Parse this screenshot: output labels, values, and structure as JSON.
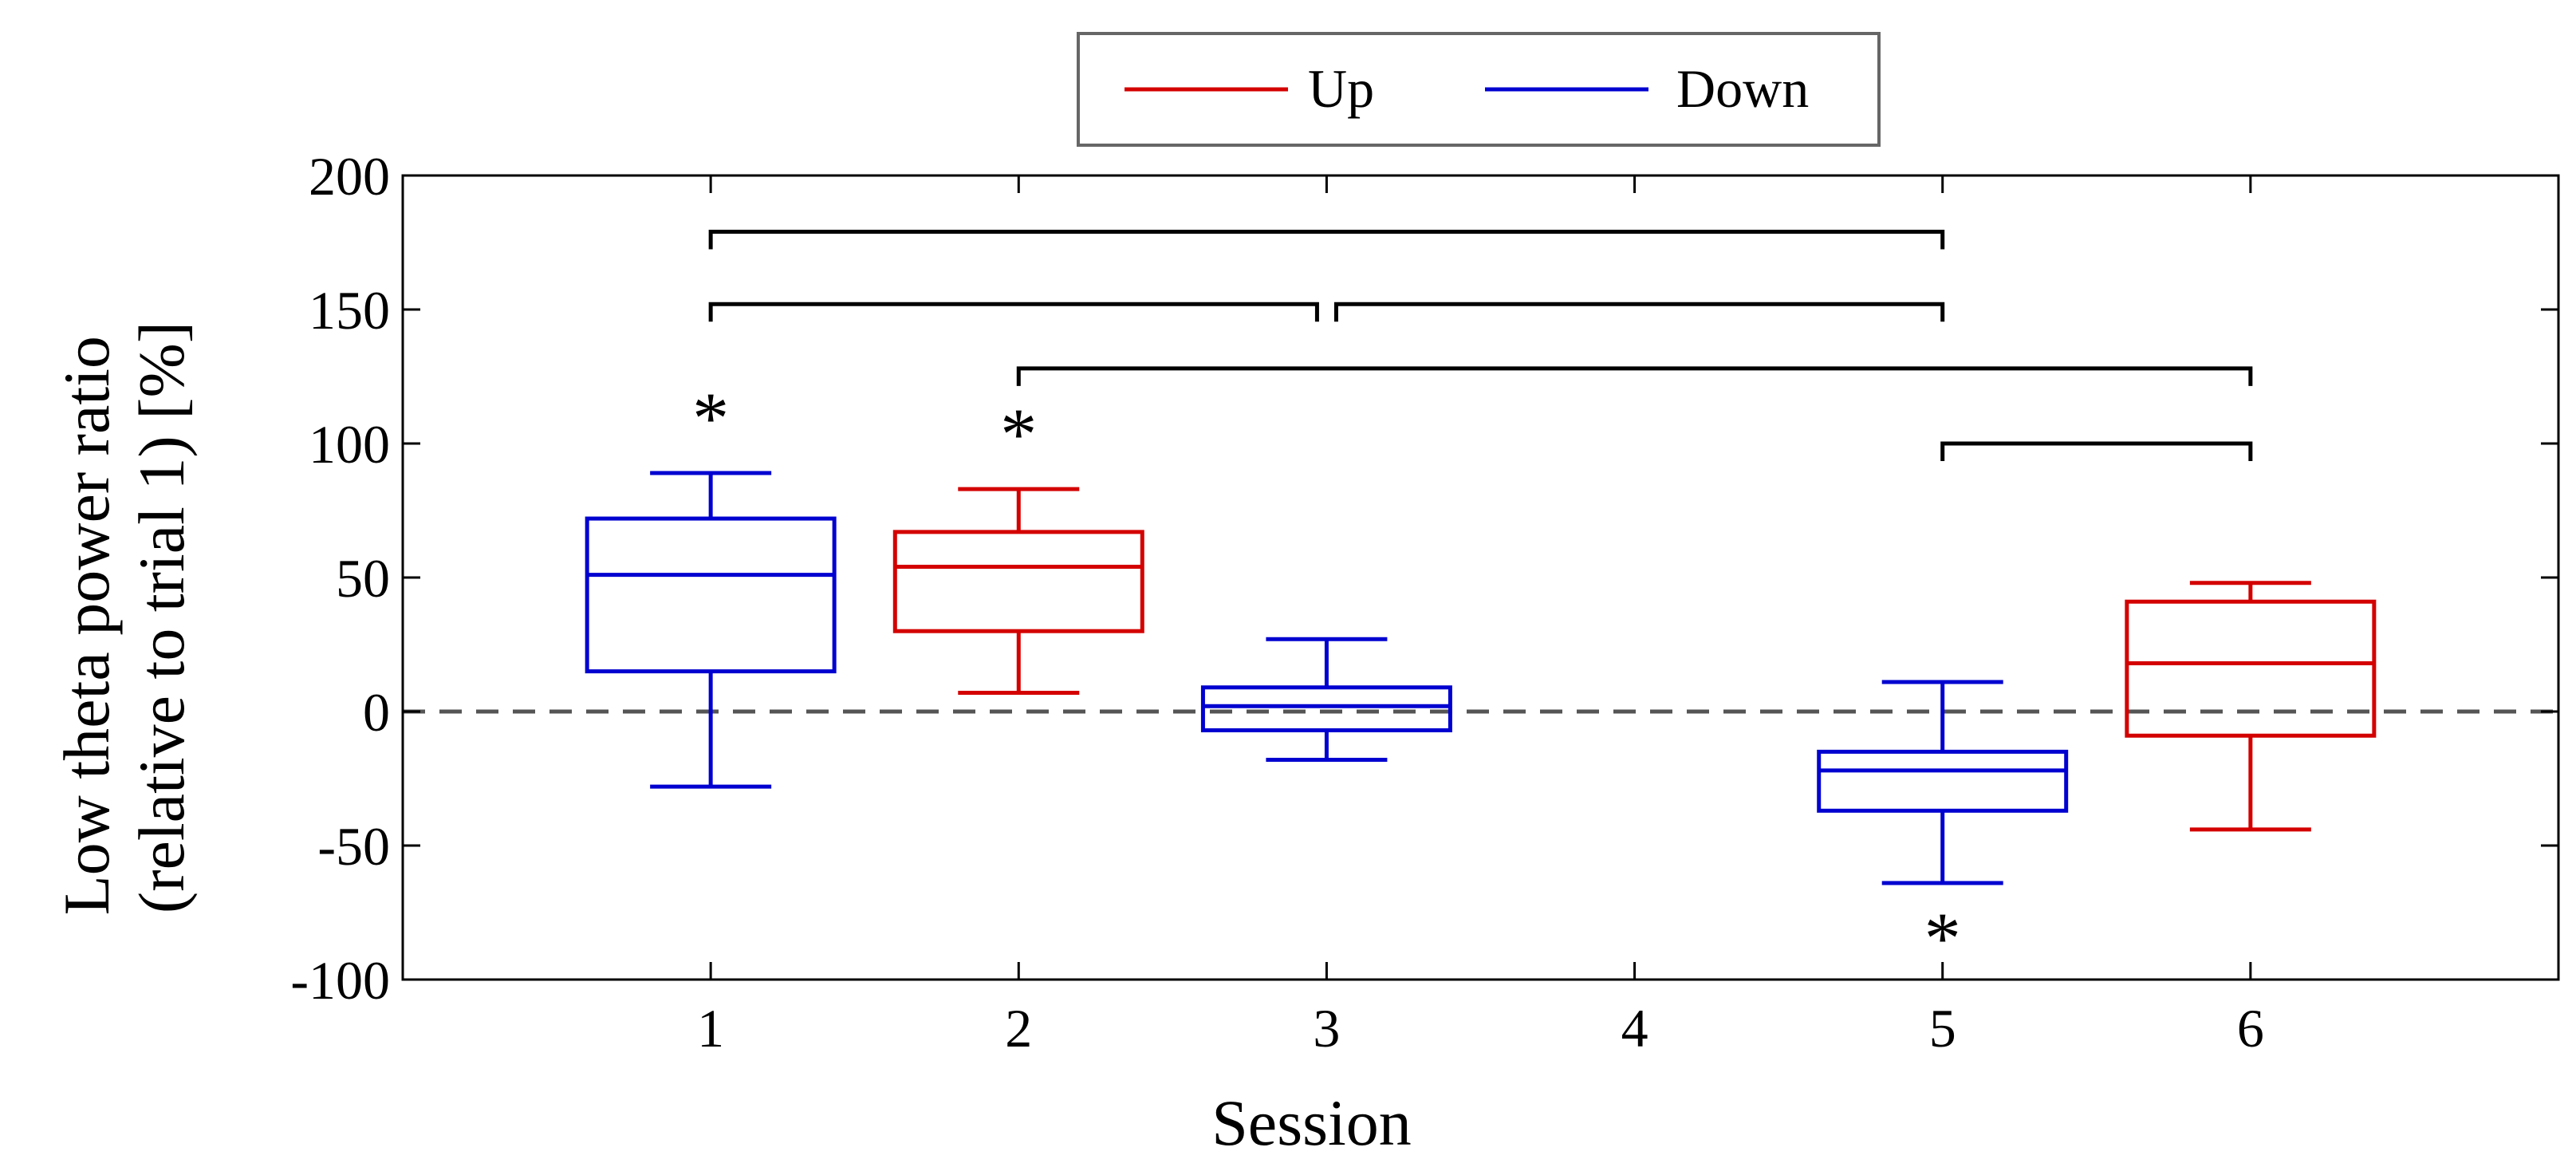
{
  "chart_data": {
    "type": "box",
    "xlabel": "Session",
    "ylabel_lines": [
      "Low theta power ratio",
      "(relative to trial 1) [%]"
    ],
    "xlim": [
      0,
      7
    ],
    "ylim": [
      -100,
      200
    ],
    "xticks": [
      1,
      2,
      3,
      4,
      5,
      6
    ],
    "yticks": [
      200,
      150,
      100,
      50,
      0,
      -50,
      -100
    ],
    "grid": false,
    "reference_line": {
      "y": 0,
      "style": "dashed"
    },
    "legend": {
      "placement": "top-center",
      "entries": [
        {
          "label": "Up",
          "color": "#d40000"
        },
        {
          "label": "Down",
          "color": "#0000d0"
        }
      ]
    },
    "boxes": [
      {
        "session": 1,
        "direction": "Down",
        "whisker_low": -28,
        "q1": 15,
        "median": 51,
        "q3": 72,
        "whisker_high": 89,
        "significant": true,
        "star_position": "above"
      },
      {
        "session": 2,
        "direction": "Up",
        "whisker_low": 7,
        "q1": 30,
        "median": 54,
        "q3": 67,
        "whisker_high": 83,
        "significant": true,
        "star_position": "above"
      },
      {
        "session": 3,
        "direction": "Down",
        "whisker_low": -18,
        "q1": -7,
        "median": 2,
        "q3": 9,
        "whisker_high": 27,
        "significant": false
      },
      {
        "session": 5,
        "direction": "Down",
        "whisker_low": -64,
        "q1": -37,
        "median": -22,
        "q3": -15,
        "whisker_high": 11,
        "significant": true,
        "star_position": "below"
      },
      {
        "session": 6,
        "direction": "Up",
        "whisker_low": -44,
        "q1": -9,
        "median": 18,
        "q3": 41,
        "whisker_high": 48,
        "significant": false
      }
    ],
    "comparison_brackets": [
      {
        "from": 1,
        "to": 5,
        "y": 179
      },
      {
        "from": 1,
        "to": 3,
        "y": 152
      },
      {
        "from": 3,
        "to": 5,
        "y": 152
      },
      {
        "from": 2,
        "to": 6,
        "y": 128
      },
      {
        "from": 5,
        "to": 6,
        "y": 100
      }
    ],
    "significance_marker": "*",
    "colors": {
      "up": "#d40000",
      "down": "#0000d0",
      "axis": "#000000",
      "reference": "#555555",
      "bracket": "#000000"
    }
  }
}
